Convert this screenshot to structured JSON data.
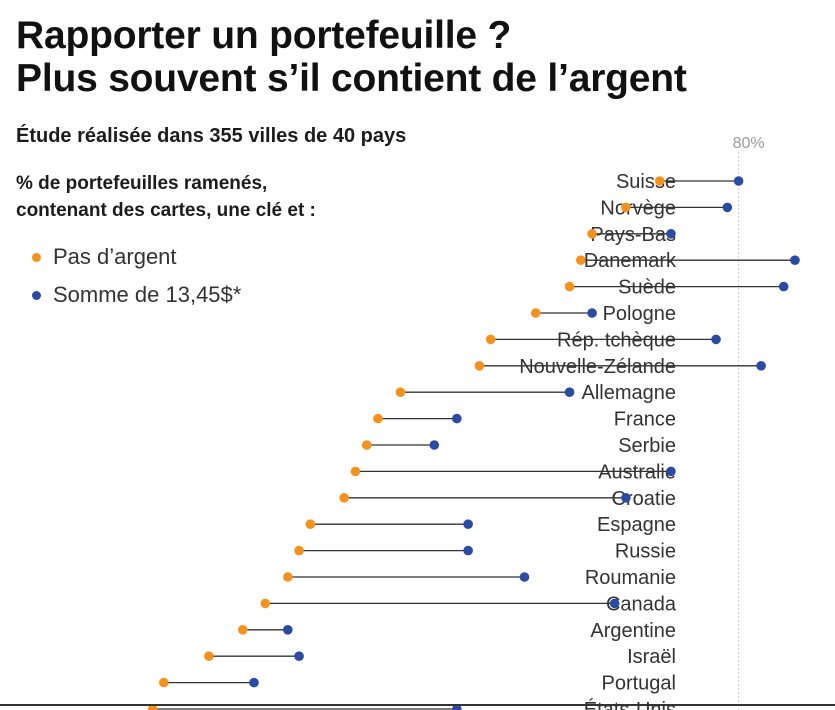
{
  "title_line1": "Rapporter un portefeuille ?",
  "title_line2": "Plus souvent s’il contient de l’argent",
  "subtitle": "Étude réalisée dans 355 villes de 40 pays",
  "description_line1": "% de portefeuilles ramenés,",
  "description_line2": "contenant des cartes, une clé et :",
  "colors": {
    "no_money": "#f5921e",
    "with_money": "#2b4aa5",
    "connector": "#333333",
    "grid": "#cfcfcf"
  },
  "chart_data": {
    "type": "dumbbell",
    "xlim": [
      0,
      100
    ],
    "xticks": [
      {
        "value": 80,
        "label": "80%"
      }
    ],
    "legend": "top-left",
    "series": [
      {
        "name": "Pas d’argent",
        "key": "no_money"
      },
      {
        "name": "Somme de 13,45$*",
        "key": "with_money"
      }
    ],
    "categories": [
      "Suisse",
      "Norvège",
      "Pays-Bas",
      "Danemark",
      "Suède",
      "Pologne",
      "Rép. tchèque",
      "Nouvelle-Zélande",
      "Allemagne",
      "France",
      "Serbie",
      "Australie",
      "Croatie",
      "Espagne",
      "Russie",
      "Roumanie",
      "Canada",
      "Argentine",
      "Israël",
      "Portugal",
      "États-Unis"
    ],
    "no_money": [
      73,
      70,
      67,
      66,
      65,
      62,
      58,
      57,
      50,
      48,
      47,
      46,
      45,
      42,
      41,
      40,
      38,
      36,
      33,
      29,
      28
    ],
    "with_money": [
      80,
      79,
      74,
      85,
      84,
      67,
      78,
      82,
      65,
      55,
      53,
      74,
      70,
      56,
      56,
      61,
      69,
      40,
      41,
      37,
      55
    ]
  }
}
